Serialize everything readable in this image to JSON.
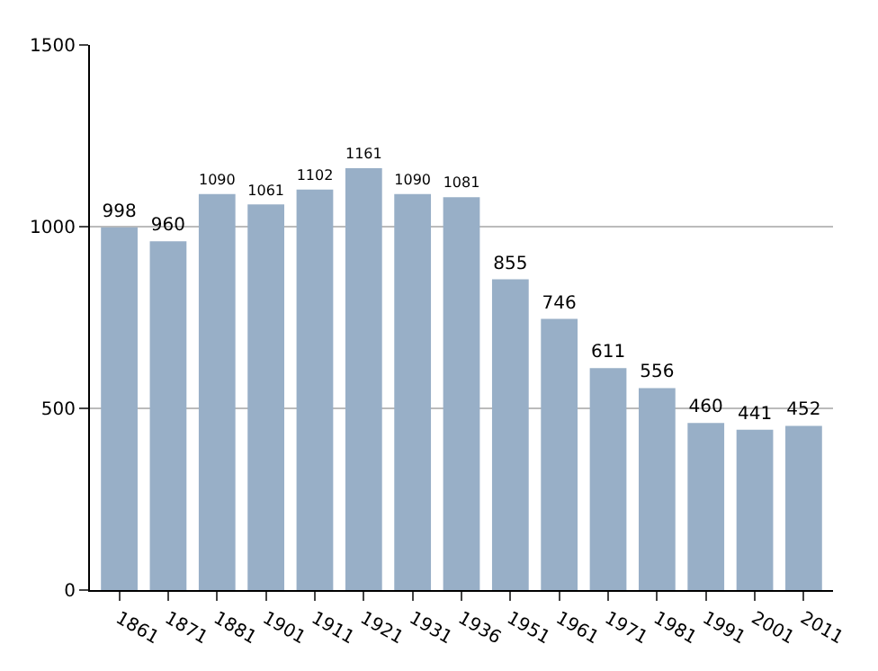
{
  "chart_data": {
    "type": "bar",
    "categories": [
      "1861",
      "1871",
      "1881",
      "1901",
      "1911",
      "1921",
      "1931",
      "1936",
      "1951",
      "1961",
      "1971",
      "1981",
      "1991",
      "2001",
      "2011"
    ],
    "values": [
      998,
      960,
      1090,
      1061,
      1102,
      1161,
      1090,
      1081,
      855,
      746,
      611,
      556,
      460,
      441,
      452
    ],
    "color": "#98afc7",
    "ylim": [
      0,
      1500
    ],
    "yticks": [
      0,
      500,
      1000,
      1500
    ],
    "grid": "y",
    "data_labels": true
  }
}
